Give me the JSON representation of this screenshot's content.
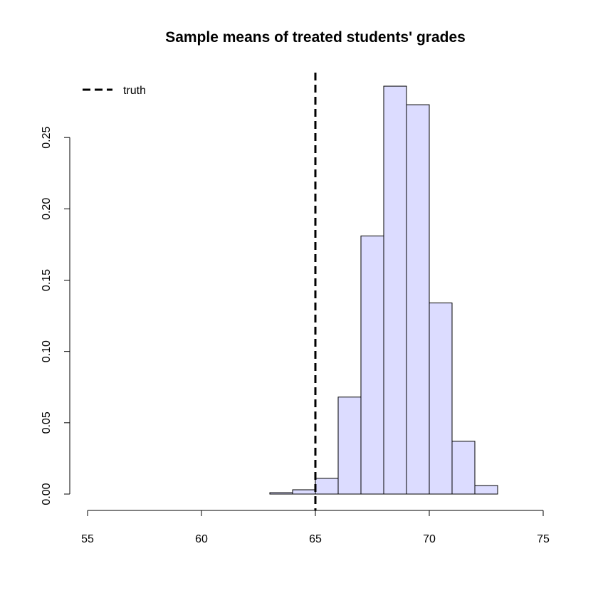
{
  "chart_data": {
    "type": "bar",
    "title": "Sample means of treated students' grades",
    "xlabel": "",
    "ylabel": "",
    "xlim": [
      55,
      75
    ],
    "ylim": [
      0,
      0.3
    ],
    "x_ticks": [
      "55",
      "60",
      "65",
      "70",
      "75"
    ],
    "y_ticks": [
      "0.00",
      "0.05",
      "0.10",
      "0.15",
      "0.20",
      "0.25"
    ],
    "bins": [
      {
        "x0": 63,
        "x1": 64,
        "value": 0.001
      },
      {
        "x0": 64,
        "x1": 65,
        "value": 0.003
      },
      {
        "x0": 65,
        "x1": 66,
        "value": 0.011
      },
      {
        "x0": 66,
        "x1": 67,
        "value": 0.068
      },
      {
        "x0": 67,
        "x1": 68,
        "value": 0.181
      },
      {
        "x0": 68,
        "x1": 69,
        "value": 0.286
      },
      {
        "x0": 69,
        "x1": 70,
        "value": 0.273
      },
      {
        "x0": 70,
        "x1": 71,
        "value": 0.134
      },
      {
        "x0": 71,
        "x1": 72,
        "value": 0.037
      },
      {
        "x0": 72,
        "x1": 73,
        "value": 0.006
      }
    ],
    "bar_color": "#dcdcff",
    "truth": {
      "x": 65
    },
    "legend": {
      "position": "top-left",
      "label": "truth"
    },
    "grid": false
  }
}
